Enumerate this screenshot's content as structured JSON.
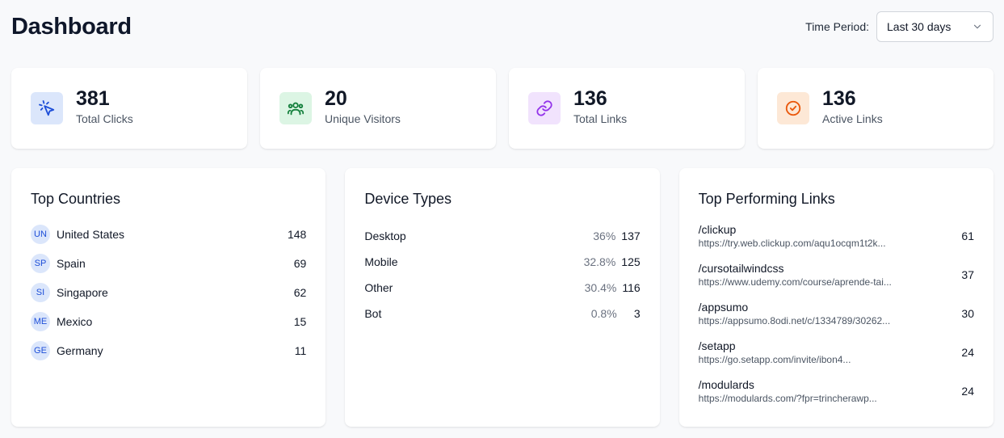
{
  "header": {
    "title": "Dashboard",
    "period_label": "Time Period:",
    "period_value": "Last 30 days"
  },
  "stats": [
    {
      "value": "381",
      "label": "Total Clicks",
      "icon": "cursor-click-icon",
      "bg": "#dbe6fb",
      "fg": "#1d4ed8"
    },
    {
      "value": "20",
      "label": "Unique Visitors",
      "icon": "users-icon",
      "bg": "#dcf5e4",
      "fg": "#15803d"
    },
    {
      "value": "136",
      "label": "Total Links",
      "icon": "link-icon",
      "bg": "#f1e3fd",
      "fg": "#9333ea"
    },
    {
      "value": "136",
      "label": "Active Links",
      "icon": "check-circle-icon",
      "bg": "#fde8d6",
      "fg": "#ea580c"
    }
  ],
  "countries": {
    "title": "Top Countries",
    "items": [
      {
        "code": "UN",
        "name": "United States",
        "count": "148"
      },
      {
        "code": "SP",
        "name": "Spain",
        "count": "69"
      },
      {
        "code": "SI",
        "name": "Singapore",
        "count": "62"
      },
      {
        "code": "ME",
        "name": "Mexico",
        "count": "15"
      },
      {
        "code": "GE",
        "name": "Germany",
        "count": "11"
      }
    ]
  },
  "devices": {
    "title": "Device Types",
    "items": [
      {
        "name": "Desktop",
        "pct": "36%",
        "count": "137"
      },
      {
        "name": "Mobile",
        "pct": "32.8%",
        "count": "125"
      },
      {
        "name": "Other",
        "pct": "30.4%",
        "count": "116"
      },
      {
        "name": "Bot",
        "pct": "0.8%",
        "count": "3"
      }
    ]
  },
  "links": {
    "title": "Top Performing Links",
    "items": [
      {
        "path": "/clickup",
        "url": "https://try.web.clickup.com/aqu1ocqm1t2k...",
        "count": "61"
      },
      {
        "path": "/cursotailwindcss",
        "url": "https://www.udemy.com/course/aprende-tai...",
        "count": "37"
      },
      {
        "path": "/appsumo",
        "url": "https://appsumo.8odi.net/c/1334789/30262...",
        "count": "30"
      },
      {
        "path": "/setapp",
        "url": "https://go.setapp.com/invite/ibon4...",
        "count": "24"
      },
      {
        "path": "/modulards",
        "url": "https://modulards.com/?fpr=trincherawp...",
        "count": "24"
      }
    ]
  }
}
